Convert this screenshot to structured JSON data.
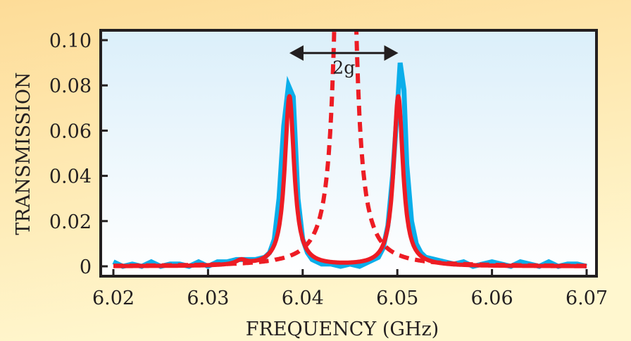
{
  "chart_data": {
    "type": "line",
    "title": "",
    "xlabel": "FREQUENCY (GHz)",
    "ylabel": "TRANSMISSION",
    "xlim": [
      6.02,
      6.07
    ],
    "ylim": [
      0,
      0.1
    ],
    "xticks": [
      6.02,
      6.03,
      6.04,
      6.05,
      6.06,
      6.07
    ],
    "xtick_labels": [
      "6.02",
      "6.03",
      "6.04",
      "6.05",
      "6.06",
      "6.07"
    ],
    "yticks": [
      0,
      0.02,
      0.04,
      0.06,
      0.08,
      0.1
    ],
    "ytick_labels": [
      "0",
      "0.02",
      "0.04",
      "0.06",
      "0.08",
      "0.10"
    ],
    "grid": false,
    "colors": {
      "measured": "#0aaeea",
      "fit": "#ed1c24",
      "uncoupled": "#ed1c24",
      "annotation": "#231f20"
    },
    "measured": [
      [
        6.02,
        0.002
      ],
      [
        6.021,
        0.0
      ],
      [
        6.022,
        0.001
      ],
      [
        6.023,
        0.0
      ],
      [
        6.024,
        0.002
      ],
      [
        6.025,
        0.0
      ],
      [
        6.026,
        0.001
      ],
      [
        6.027,
        0.001
      ],
      [
        6.028,
        0.0
      ],
      [
        6.029,
        0.002
      ],
      [
        6.03,
        0.0
      ],
      [
        6.031,
        0.002
      ],
      [
        6.032,
        0.002
      ],
      [
        6.033,
        0.003
      ],
      [
        6.034,
        0.003
      ],
      [
        6.035,
        0.003
      ],
      [
        6.036,
        0.004
      ],
      [
        6.0365,
        0.006
      ],
      [
        6.037,
        0.012
      ],
      [
        6.0375,
        0.03
      ],
      [
        6.038,
        0.062
      ],
      [
        6.0385,
        0.08
      ],
      [
        6.039,
        0.075
      ],
      [
        6.0395,
        0.03
      ],
      [
        6.04,
        0.012
      ],
      [
        6.0405,
        0.006
      ],
      [
        6.041,
        0.003
      ],
      [
        6.042,
        0.001
      ],
      [
        6.043,
        0.001
      ],
      [
        6.044,
        0.0
      ],
      [
        6.045,
        0.001
      ],
      [
        6.046,
        0.0
      ],
      [
        6.047,
        0.002
      ],
      [
        6.048,
        0.004
      ],
      [
        6.0485,
        0.008
      ],
      [
        6.049,
        0.018
      ],
      [
        6.0495,
        0.04
      ],
      [
        6.05,
        0.07
      ],
      [
        6.0503,
        0.09
      ],
      [
        6.0507,
        0.078
      ],
      [
        6.051,
        0.045
      ],
      [
        6.0515,
        0.02
      ],
      [
        6.052,
        0.01
      ],
      [
        6.0525,
        0.006
      ],
      [
        6.053,
        0.004
      ],
      [
        6.054,
        0.003
      ],
      [
        6.055,
        0.002
      ],
      [
        6.056,
        0.001
      ],
      [
        6.057,
        0.002
      ],
      [
        6.058,
        0.0
      ],
      [
        6.059,
        0.001
      ],
      [
        6.06,
        0.002
      ],
      [
        6.061,
        0.001
      ],
      [
        6.062,
        0.0
      ],
      [
        6.063,
        0.002
      ],
      [
        6.064,
        0.001
      ],
      [
        6.065,
        0.0
      ],
      [
        6.066,
        0.002
      ],
      [
        6.067,
        0.0
      ],
      [
        6.068,
        0.001
      ],
      [
        6.069,
        0.001
      ],
      [
        6.07,
        0.0
      ]
    ],
    "fit": {
      "style": "solid",
      "peaks": [
        {
          "center": 6.0386,
          "height": 0.075,
          "hwhm": 0.0006
        },
        {
          "center": 6.0501,
          "height": 0.075,
          "hwhm": 0.0006
        },
        {
          "center": 6.0335,
          "height": 0.002,
          "hwhm": 0.0007
        }
      ]
    },
    "uncoupled": {
      "style": "dashed",
      "peaks": [
        {
          "center": 6.0445,
          "height": 1.0,
          "hwhm": 0.0004
        }
      ]
    },
    "annotation": {
      "label": "2g",
      "from": 6.0386,
      "to": 6.0501,
      "y": 0.094
    }
  }
}
